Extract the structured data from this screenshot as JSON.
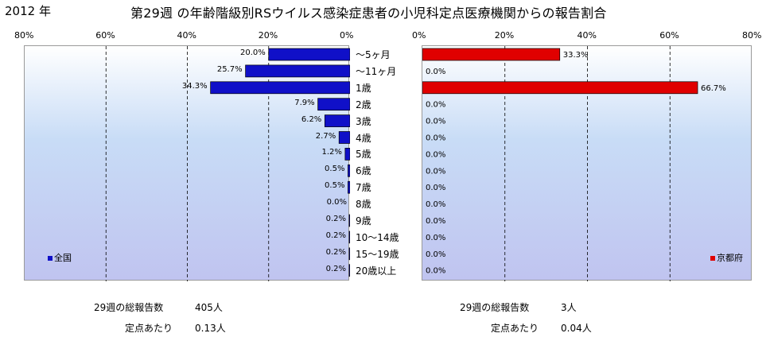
{
  "header": {
    "year": "2012 年",
    "title": "第29週 の年齢階級別RSウイルス感染症患者の小児科定点医療機関からの報告割合"
  },
  "chart_data": [
    {
      "type": "bar",
      "orientation": "horizontal",
      "direction": "leftward",
      "series": [
        {
          "name": "全国",
          "color": "#1010c8",
          "values": [
            20.0,
            25.7,
            34.3,
            7.9,
            6.2,
            2.7,
            1.2,
            0.5,
            0.5,
            0.0,
            0.2,
            0.2,
            0.2,
            0.2
          ],
          "labels": [
            "20.0%",
            "25.7%",
            "34.3%",
            "7.9%",
            "6.2%",
            "2.7%",
            "1.2%",
            "0.5%",
            "0.5%",
            "0.0%",
            "0.2%",
            "0.2%",
            "0.2%",
            "0.2%"
          ]
        }
      ],
      "xlim": [
        0,
        80
      ],
      "ticks": [
        "80%",
        "60%",
        "40%",
        "20%",
        "0%"
      ],
      "grid": true,
      "legend": "bottom-left"
    },
    {
      "type": "bar",
      "orientation": "horizontal",
      "direction": "rightward",
      "series": [
        {
          "name": "京都府",
          "color": "#e00000",
          "values": [
            33.3,
            0.0,
            66.7,
            0.0,
            0.0,
            0.0,
            0.0,
            0.0,
            0.0,
            0.0,
            0.0,
            0.0,
            0.0,
            0.0
          ],
          "labels": [
            "33.3%",
            "0.0%",
            "66.7%",
            "0.0%",
            "0.0%",
            "0.0%",
            "0.0%",
            "0.0%",
            "0.0%",
            "0.0%",
            "0.0%",
            "0.0%",
            "0.0%",
            "0.0%"
          ]
        }
      ],
      "xlim": [
        0,
        80
      ],
      "ticks": [
        "0%",
        "20%",
        "40%",
        "60%",
        "80%"
      ],
      "grid": true,
      "legend": "bottom-right"
    }
  ],
  "categories": [
    "〜5ヶ月",
    "〜11ヶ月",
    "1歳",
    "2歳",
    "3歳",
    "4歳",
    "5歳",
    "6歳",
    "7歳",
    "8歳",
    "9歳",
    "10〜14歳",
    "15〜19歳",
    "20歳以上"
  ],
  "stats": {
    "national": {
      "total_label": "29週の総報告数",
      "total_value": "405人",
      "per_label": "定点あたり",
      "per_value": "0.13人"
    },
    "kyoto": {
      "total_label": "29週の総報告数",
      "total_value": "3人",
      "per_label": "定点あたり",
      "per_value": "0.04人"
    }
  }
}
